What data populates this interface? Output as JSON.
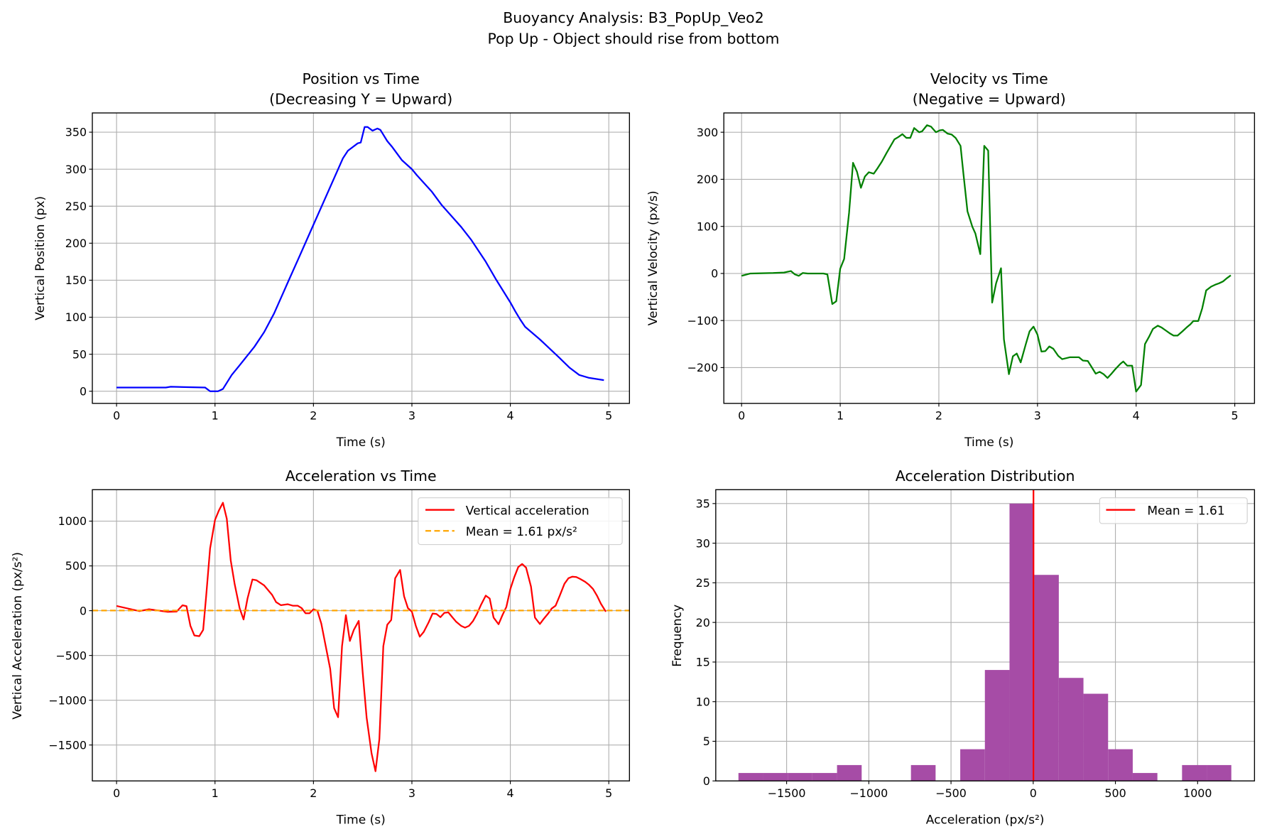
{
  "suptitle": [
    "Buoyancy Analysis: B3_PopUp_Veo2",
    "Pop Up - Object should rise from bottom"
  ],
  "colors": {
    "position": "#0000ff",
    "velocity": "#008000",
    "acceleration": "#ff0000",
    "mean": "#ffa500",
    "hist": "#a64ca6",
    "grid": "#b0b0b0"
  },
  "chart_data": [
    {
      "type": "line",
      "title": "Position vs Time",
      "subtitle": "(Decreasing Y = Upward)",
      "xlabel": "Time (s)",
      "ylabel": "Vertical Position (px)",
      "xlim": [
        -0.246,
        5.21
      ],
      "ylim": [
        -16.4,
        376
      ],
      "grid": true,
      "xticks": [
        0,
        1,
        2,
        3,
        4,
        5
      ],
      "yticks": [
        0,
        50,
        100,
        150,
        200,
        250,
        300,
        350
      ],
      "series": [
        {
          "name": "Position",
          "color_key": "position",
          "x": [
            0,
            0.5,
            0.55,
            0.9,
            0.95,
            1.03,
            1.08,
            1.17,
            1.25,
            1.4,
            1.5,
            1.6,
            1.7,
            1.75,
            1.85,
            2.0,
            2.1,
            2.2,
            2.3,
            2.35,
            2.45,
            2.48,
            2.52,
            2.55,
            2.6,
            2.65,
            2.68,
            2.75,
            2.8,
            2.9,
            3.0,
            3.05,
            3.2,
            3.3,
            3.5,
            3.6,
            3.75,
            3.85,
            4.0,
            4.05,
            4.1,
            4.15,
            4.3,
            4.5,
            4.6,
            4.7,
            4.8,
            4.95
          ],
          "y": [
            5,
            5,
            6,
            5,
            0,
            0,
            3,
            22,
            35,
            60,
            80,
            105,
            135,
            150,
            180,
            225,
            255,
            285,
            315,
            325,
            335,
            336,
            357,
            357,
            352,
            355,
            353,
            338,
            330,
            312,
            300,
            292,
            270,
            252,
            222,
            205,
            175,
            152,
            120,
            108,
            97,
            87,
            70,
            45,
            32,
            22,
            18,
            15
          ]
        }
      ]
    },
    {
      "type": "line",
      "title": "Velocity vs Time",
      "subtitle": "(Negative = Upward)",
      "xlabel": "Time (s)",
      "ylabel": "Vertical Velocity (px/s)",
      "xlim": [
        -0.18,
        5.2
      ],
      "ylim": [
        -276,
        341
      ],
      "grid": true,
      "xticks": [
        0,
        1,
        2,
        3,
        4,
        5
      ],
      "yticks": [
        -200,
        -100,
        0,
        100,
        200,
        300
      ],
      "series": [
        {
          "name": "Velocity",
          "color_key": "velocity",
          "x": [
            0,
            0.09,
            0.32,
            0.43,
            0.5,
            0.54,
            0.58,
            0.62,
            0.67,
            0.76,
            0.83,
            0.87,
            0.92,
            0.96,
            1.0,
            1.04,
            1.09,
            1.13,
            1.17,
            1.21,
            1.25,
            1.29,
            1.34,
            1.38,
            1.42,
            1.47,
            1.5,
            1.55,
            1.59,
            1.63,
            1.67,
            1.71,
            1.75,
            1.8,
            1.83,
            1.88,
            1.92,
            1.97,
            2.01,
            2.04,
            2.09,
            2.13,
            2.17,
            2.22,
            2.25,
            2.29,
            2.34,
            2.37,
            2.42,
            2.46,
            2.5,
            2.54,
            2.58,
            2.63,
            2.66,
            2.71,
            2.75,
            2.79,
            2.83,
            2.88,
            2.92,
            2.96,
            3.0,
            3.04,
            3.08,
            3.12,
            3.16,
            3.21,
            3.25,
            3.33,
            3.42,
            3.46,
            3.51,
            3.54,
            3.59,
            3.63,
            3.67,
            3.71,
            3.75,
            3.79,
            3.84,
            3.87,
            3.91,
            3.96,
            4.0,
            4.05,
            4.09,
            4.13,
            4.17,
            4.22,
            4.26,
            4.3,
            4.34,
            4.38,
            4.42,
            4.47,
            4.51,
            4.55,
            4.58,
            4.63,
            4.67,
            4.71,
            4.76,
            4.8,
            4.84,
            4.88,
            4.92,
            4.96
          ],
          "y": [
            -5,
            0,
            1,
            2,
            5,
            -2,
            -5,
            1,
            0,
            0,
            0,
            -2,
            -65,
            -59,
            10,
            31,
            129,
            235,
            216,
            182,
            206,
            215,
            212,
            224,
            237,
            256,
            267,
            285,
            290,
            296,
            288,
            288,
            309,
            300,
            302,
            315,
            312,
            300,
            304,
            305,
            297,
            295,
            288,
            271,
            210,
            132,
            99,
            85,
            41,
            271,
            261,
            -62,
            -21,
            11,
            -140,
            -214,
            -176,
            -170,
            -189,
            -151,
            -123,
            -113,
            -130,
            -166,
            -165,
            -155,
            -160,
            -175,
            -182,
            -178,
            -178,
            -185,
            -186,
            -196,
            -213,
            -209,
            -214,
            -222,
            -213,
            -203,
            -192,
            -187,
            -196,
            -196,
            -251,
            -237,
            -150,
            -135,
            -118,
            -111,
            -115,
            -121,
            -127,
            -132,
            -132,
            -123,
            -115,
            -108,
            -101,
            -101,
            -74,
            -36,
            -28,
            -24,
            -21,
            -17,
            -10,
            -4
          ]
        }
      ]
    },
    {
      "type": "line",
      "title": "Acceleration vs Time",
      "xlabel": "Time (s)",
      "ylabel": "Vertical Acceleration (px/s²)",
      "xlim": [
        -0.246,
        5.21
      ],
      "ylim": [
        -1901,
        1351
      ],
      "grid": true,
      "xticks": [
        0,
        1,
        2,
        3,
        4,
        5
      ],
      "yticks": [
        -1500,
        -1000,
        -500,
        0,
        500,
        1000
      ],
      "legend": {
        "placement": "top-right",
        "entries": [
          "Vertical acceleration",
          "Mean = 1.61 px/s²"
        ]
      },
      "mean": 1.61,
      "series": [
        {
          "name": "Vertical acceleration",
          "color_key": "acceleration",
          "x": [
            0,
            0.23,
            0.33,
            0.52,
            0.61,
            0.67,
            0.71,
            0.75,
            0.79,
            0.84,
            0.88,
            0.91,
            0.95,
            1.0,
            1.04,
            1.08,
            1.12,
            1.16,
            1.2,
            1.25,
            1.29,
            1.33,
            1.38,
            1.42,
            1.5,
            1.58,
            1.62,
            1.67,
            1.74,
            1.79,
            1.84,
            1.88,
            1.92,
            1.96,
            2.0,
            2.04,
            2.08,
            2.12,
            2.17,
            2.21,
            2.25,
            2.29,
            2.33,
            2.37,
            2.41,
            2.46,
            2.5,
            2.54,
            2.59,
            2.63,
            2.67,
            2.71,
            2.75,
            2.79,
            2.83,
            2.88,
            2.92,
            2.96,
            3.0,
            3.04,
            3.08,
            3.12,
            3.17,
            3.21,
            3.25,
            3.29,
            3.33,
            3.37,
            3.41,
            3.45,
            3.5,
            3.54,
            3.58,
            3.62,
            3.66,
            3.7,
            3.75,
            3.79,
            3.83,
            3.88,
            3.92,
            3.96,
            4.0,
            4.04,
            4.08,
            4.12,
            4.16,
            4.21,
            4.25,
            4.3,
            4.34,
            4.38,
            4.42,
            4.46,
            4.5,
            4.55,
            4.59,
            4.63,
            4.67,
            4.71,
            4.76,
            4.8,
            4.84,
            4.88,
            4.92,
            4.97
          ],
          "y": [
            53,
            -5,
            16,
            -13,
            -10,
            60,
            50,
            -170,
            -277,
            -285,
            -215,
            160,
            695,
            1013,
            1120,
            1205,
            1027,
            561,
            295,
            29,
            -98,
            136,
            348,
            340,
            282,
            176,
            96,
            61,
            72,
            56,
            56,
            29,
            -29,
            -29,
            16,
            0,
            -144,
            -370,
            -649,
            -1088,
            -1189,
            -396,
            -50,
            -338,
            -215,
            -114,
            -689,
            -1194,
            -1593,
            -1793,
            -1434,
            -396,
            -157,
            -104,
            362,
            455,
            162,
            29,
            -11,
            -170,
            -290,
            -237,
            -130,
            -32,
            -37,
            -72,
            -24,
            -19,
            -72,
            -125,
            -170,
            -189,
            -170,
            -117,
            -37,
            61,
            168,
            136,
            -77,
            -152,
            -50,
            43,
            242,
            375,
            487,
            521,
            481,
            269,
            -77,
            -149,
            -90,
            -37,
            24,
            56,
            162,
            301,
            362,
            380,
            375,
            354,
            322,
            287,
            242,
            168,
            77,
            -11
          ]
        }
      ]
    },
    {
      "type": "bar",
      "title": "Acceleration Distribution",
      "xlabel": "Acceleration (px/s²)",
      "ylabel": "Frequency",
      "xlim": [
        -1931,
        1346
      ],
      "ylim": [
        0,
        36.75
      ],
      "grid": true,
      "xticks": [
        -1500,
        -1000,
        -500,
        0,
        500,
        1000
      ],
      "yticks": [
        0,
        5,
        10,
        15,
        20,
        25,
        30,
        35
      ],
      "bin_start": -1793,
      "bin_width": 149.9,
      "counts": [
        1,
        1,
        1,
        1,
        2,
        0,
        0,
        2,
        0,
        4,
        14,
        35,
        26,
        13,
        11,
        4,
        1,
        0,
        2,
        2
      ],
      "mean": 1.61,
      "legend": {
        "placement": "top-right",
        "entries": [
          "Mean = 1.61"
        ]
      }
    }
  ]
}
